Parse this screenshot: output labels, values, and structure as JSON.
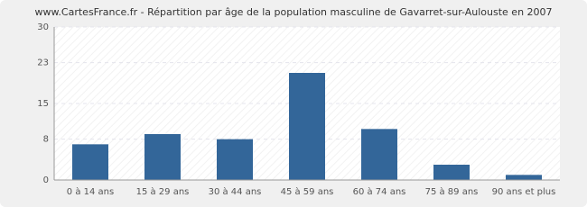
{
  "chart_data": {
    "type": "bar",
    "title": "www.CartesFrance.fr - Répartition par âge de la population masculine de Gavarret-sur-Aulouste en 2007",
    "categories": [
      "0 à 14 ans",
      "15 à 29 ans",
      "30 à 44 ans",
      "45 à 59 ans",
      "60 à 74 ans",
      "75 à 89 ans",
      "90 ans et plus"
    ],
    "values": [
      7,
      9,
      8,
      21,
      10,
      3,
      1
    ],
    "color": "#336699",
    "ylim": [
      0,
      30
    ],
    "yticks": [
      0,
      8,
      15,
      23,
      30
    ],
    "grid": true
  }
}
